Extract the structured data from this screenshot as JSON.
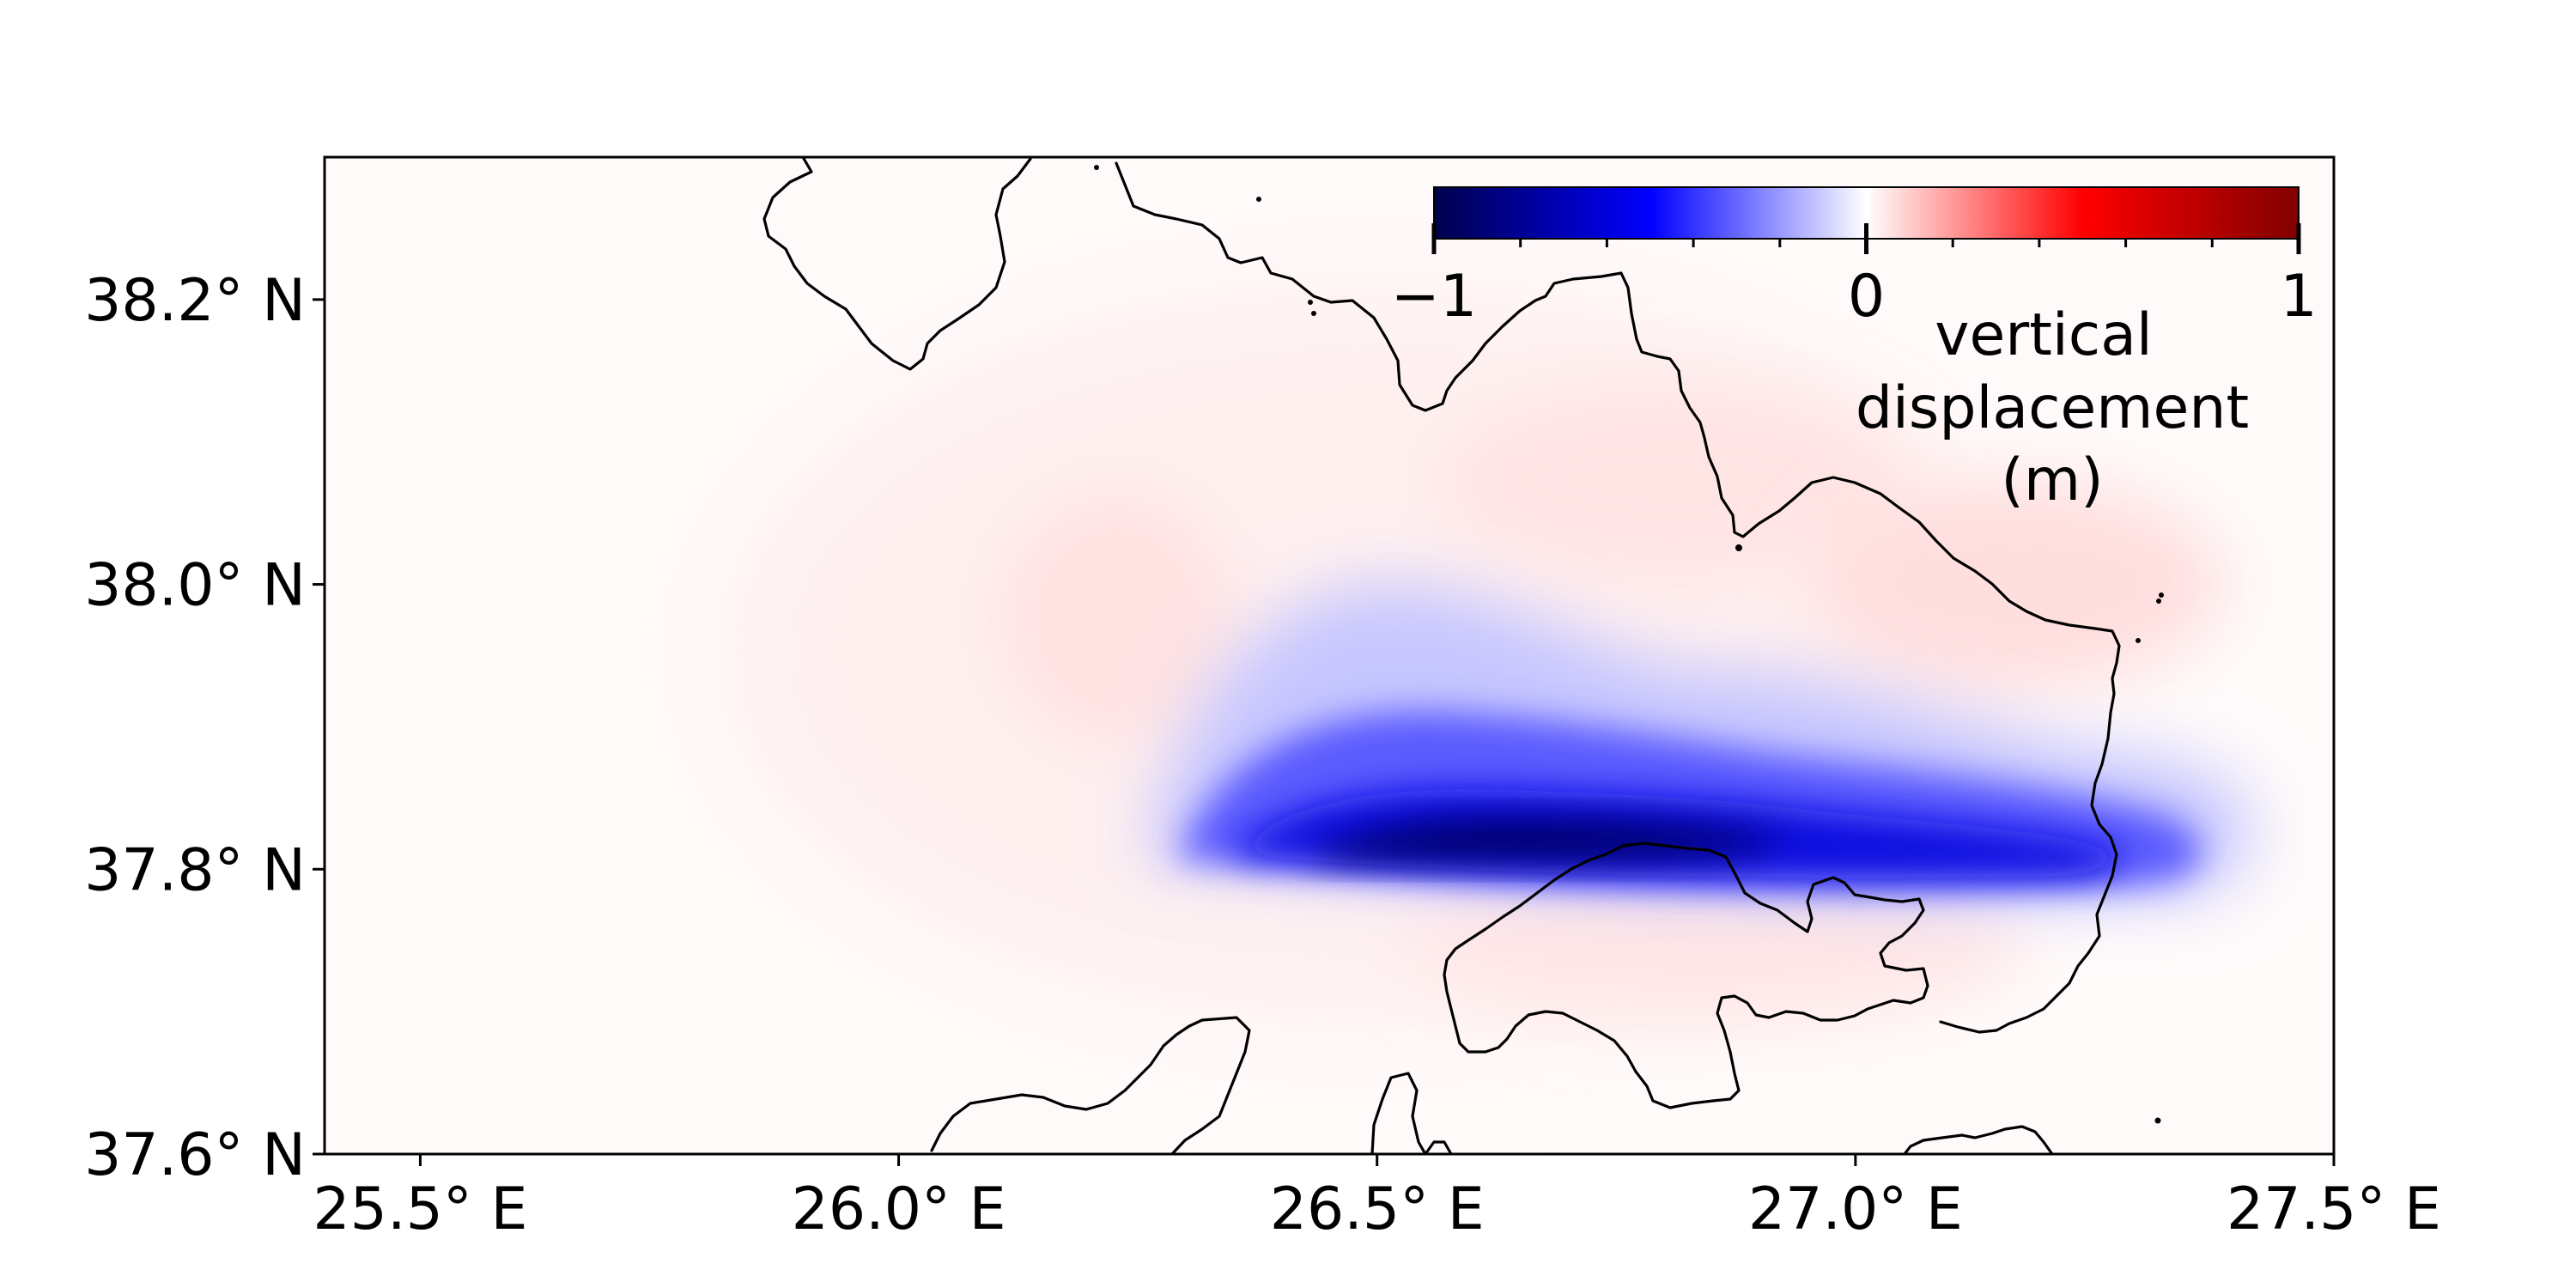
{
  "map": {
    "x_ticks": [
      "25.5° E",
      "26.0° E",
      "26.5° E",
      "27.0° E",
      "27.5° E"
    ],
    "y_ticks": [
      "37.6° N",
      "37.8° N",
      "38.0° N",
      "38.2° N"
    ],
    "lon_range": [
      25.4,
      27.5
    ],
    "lat_range": [
      37.6,
      38.3
    ]
  },
  "colorbar": {
    "tick_labels": [
      "−1",
      "0",
      "1"
    ],
    "label_lines": [
      "vertical",
      "displacement",
      "(m)"
    ],
    "range": [
      -1,
      1
    ],
    "cmap": "seismic",
    "orientation": "horizontal",
    "placement": "upper-right inset"
  },
  "colors": {
    "deep_negative": "#00004c",
    "negative": "#0000ff",
    "zero": "#ffffff",
    "positive": "#ff0000",
    "deep_positive": "#800000",
    "coastline": "#000000"
  }
}
